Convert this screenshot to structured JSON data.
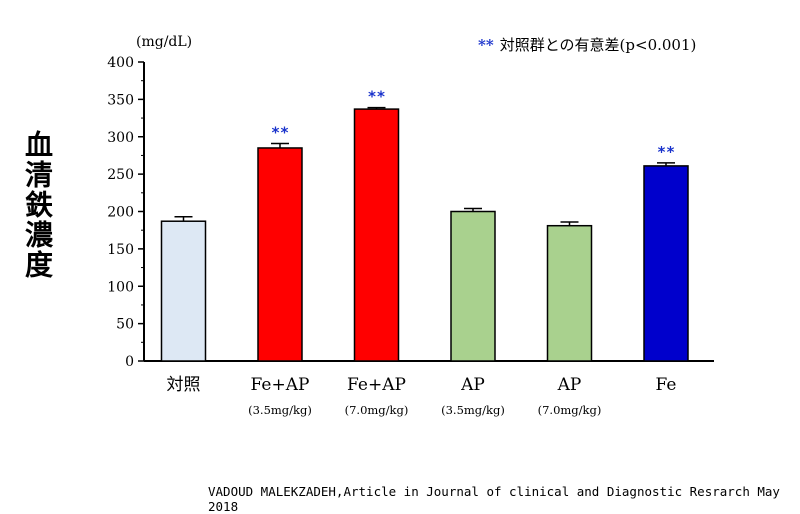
{
  "unit_label": "(mg/dL)",
  "y_axis_title": "血清鉄濃度",
  "legend": {
    "marker": "**",
    "text": "対照群との有意差(p<0.001)"
  },
  "credit": "VADOUD MALEKZADEH,Article in Journal of clinical and Diagnostic Resrarch May 2018",
  "colors": {
    "control": "#dde8f4",
    "red": "#ff0000",
    "green": "#a9d18e",
    "blue": "#0000cc",
    "star": "#1a33cc"
  },
  "chart_data": {
    "type": "bar",
    "ylim": [
      0,
      400
    ],
    "yticks": [
      0,
      50,
      100,
      150,
      200,
      250,
      300,
      350,
      400
    ],
    "categories": [
      {
        "label": "対照",
        "sub": "",
        "value": 187,
        "error": 6,
        "color": "#dde8f4",
        "sig": ""
      },
      {
        "label": "Fe+AP",
        "sub": "(3.5mg/kg)",
        "value": 285,
        "error": 6,
        "color": "#ff0000",
        "sig": "**"
      },
      {
        "label": "Fe+AP",
        "sub": "(7.0mg/kg)",
        "value": 337,
        "error": 2,
        "color": "#ff0000",
        "sig": "**"
      },
      {
        "label": "AP",
        "sub": "(3.5mg/kg)",
        "value": 200,
        "error": 4,
        "color": "#a9d18e",
        "sig": ""
      },
      {
        "label": "AP",
        "sub": "(7.0mg/kg)",
        "value": 181,
        "error": 5,
        "color": "#a9d18e",
        "sig": ""
      },
      {
        "label": "Fe",
        "sub": "",
        "value": 261,
        "error": 4,
        "color": "#0000cc",
        "sig": "**"
      }
    ]
  }
}
